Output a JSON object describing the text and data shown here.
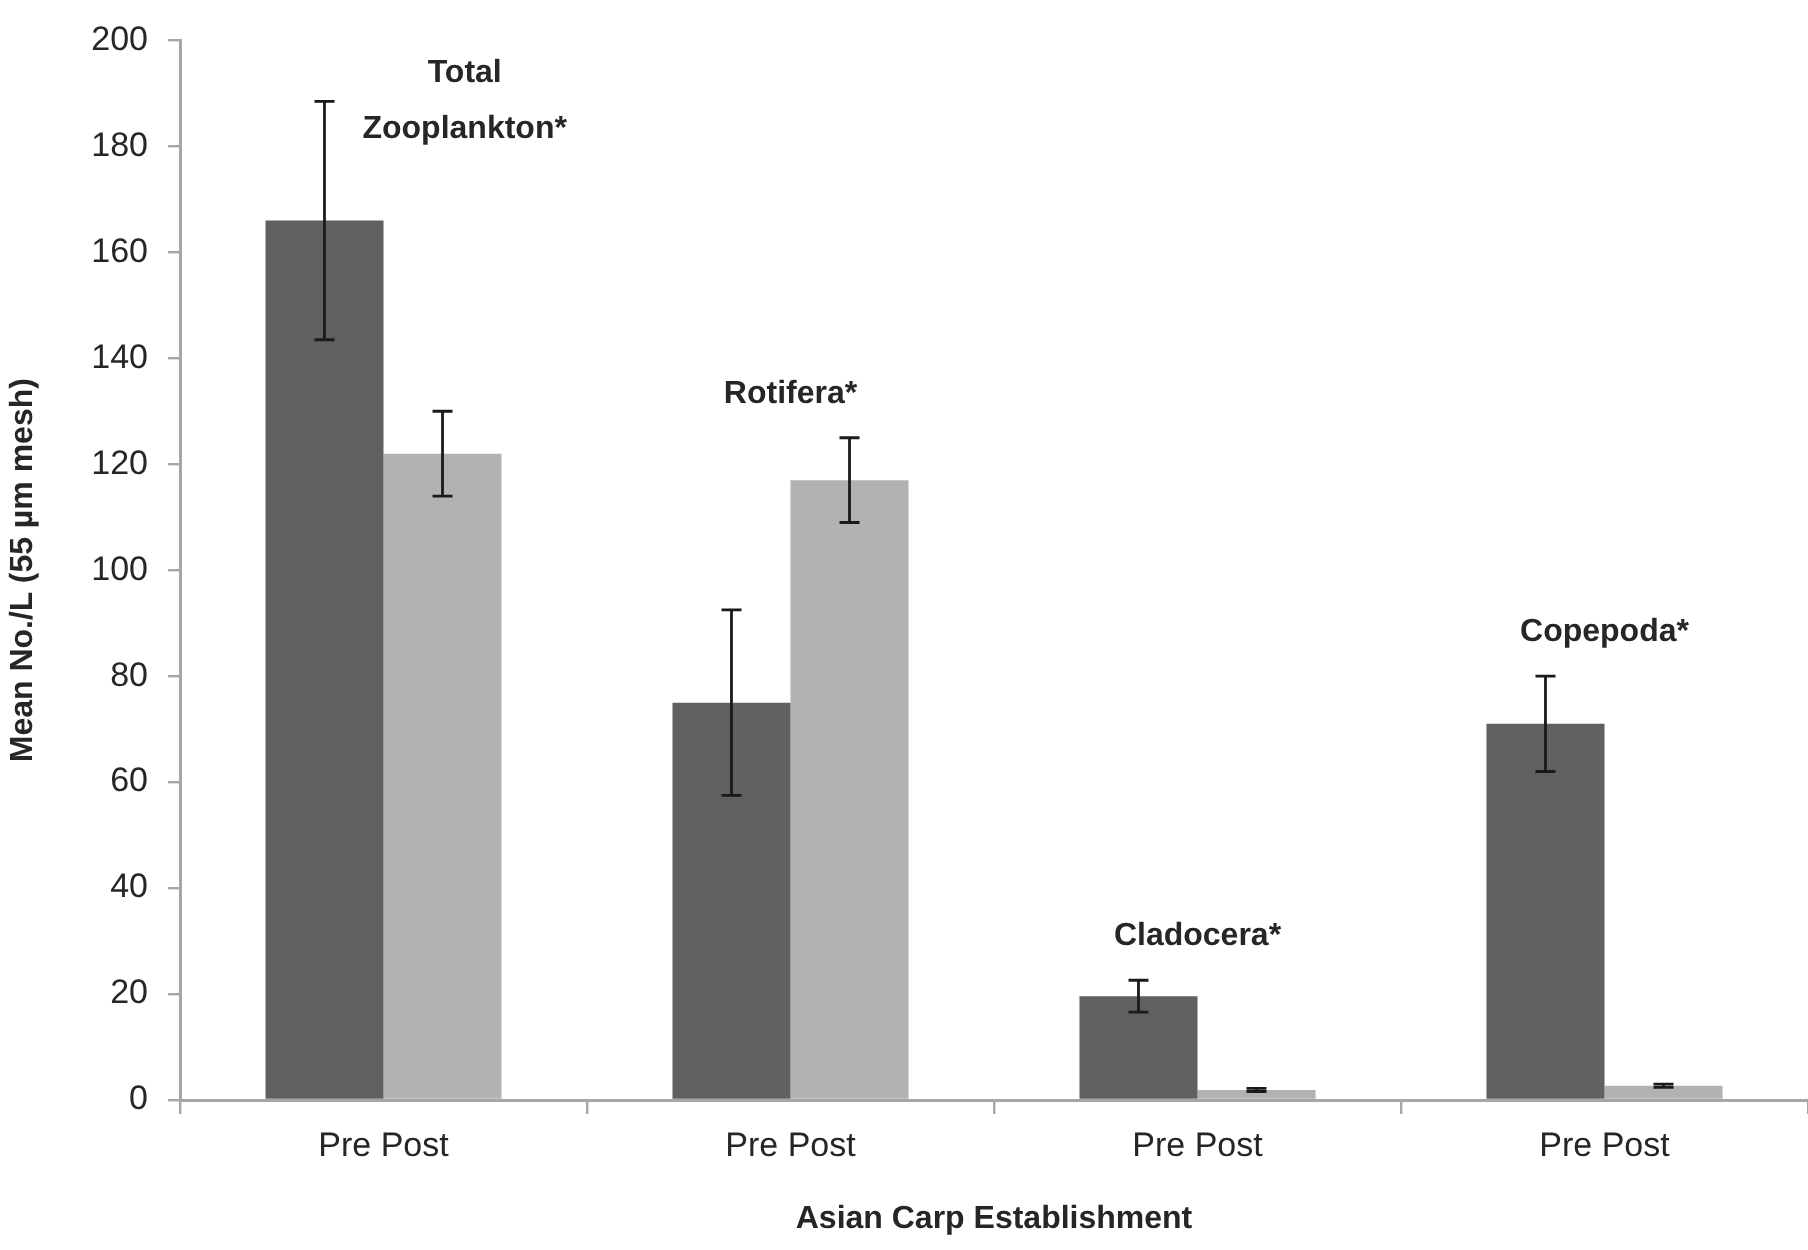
{
  "chart_data": {
    "type": "bar",
    "xlabel": "Asian Carp Establishment",
    "ylabel": "Mean No./L (55 µm mesh)",
    "categories": [
      "Pre Post",
      "Pre Post",
      "Pre Post",
      "Pre Post"
    ],
    "series": [
      {
        "color": "#606060",
        "values": [
          166,
          75,
          19.6,
          71
        ],
        "errors": [
          22.5,
          17.5,
          3,
          9
        ]
      },
      {
        "color": "#b2b2b2",
        "values": [
          122,
          117,
          1.9,
          2.7
        ],
        "errors": [
          8,
          8,
          0.3,
          0.3
        ]
      }
    ],
    "ylim": [
      0,
      200
    ],
    "yticks": [
      0,
      20,
      40,
      60,
      80,
      100,
      120,
      140,
      160,
      180,
      200
    ],
    "annotations": [
      "Total Zooplankton*",
      "Rotifera*",
      "Cladocera*",
      "Copepoda*"
    ]
  }
}
